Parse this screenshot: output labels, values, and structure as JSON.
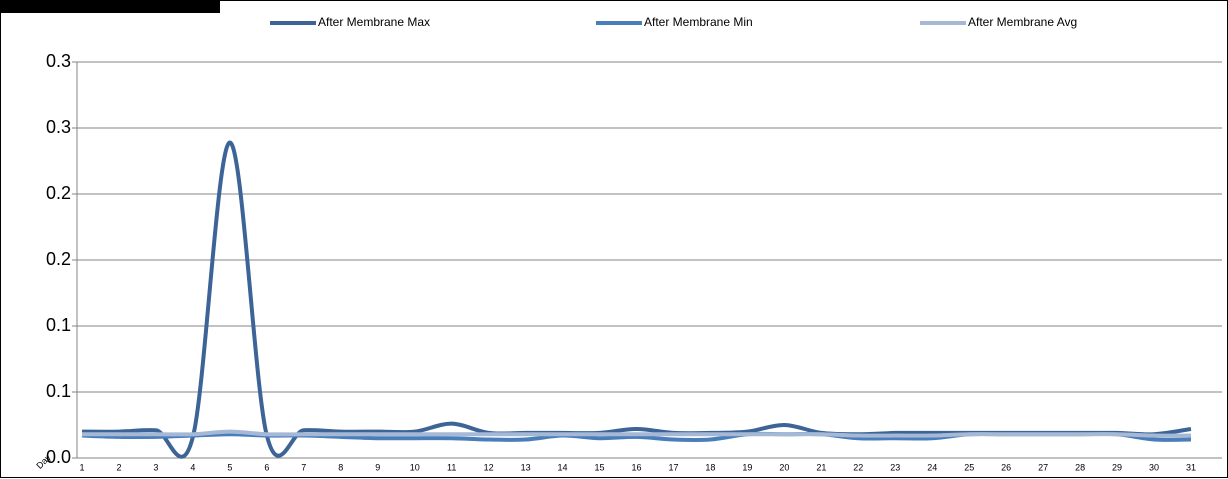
{
  "chart_data": {
    "type": "line",
    "xlabel": "Day",
    "categories": [
      "1",
      "2",
      "3",
      "4",
      "5",
      "6",
      "7",
      "8",
      "9",
      "10",
      "11",
      "12",
      "13",
      "14",
      "15",
      "16",
      "17",
      "18",
      "19",
      "20",
      "21",
      "22",
      "23",
      "24",
      "25",
      "26",
      "27",
      "28",
      "29",
      "30",
      "31"
    ],
    "series": [
      {
        "name": "After Membrane Max",
        "color": "#3c6496",
        "values": [
          0.02,
          0.02,
          0.021,
          0.016,
          0.239,
          0.017,
          0.021,
          0.02,
          0.02,
          0.02,
          0.026,
          0.019,
          0.019,
          0.019,
          0.019,
          0.022,
          0.019,
          0.019,
          0.02,
          0.025,
          0.019,
          0.018,
          0.019,
          0.019,
          0.019,
          0.019,
          0.019,
          0.019,
          0.019,
          0.018,
          0.022
        ]
      },
      {
        "name": "After Membrane Min",
        "color": "#4a7ebb",
        "values": [
          0.017,
          0.016,
          0.016,
          0.017,
          0.018,
          0.017,
          0.017,
          0.016,
          0.015,
          0.015,
          0.015,
          0.014,
          0.014,
          0.017,
          0.015,
          0.016,
          0.014,
          0.014,
          0.018,
          0.018,
          0.018,
          0.015,
          0.015,
          0.015,
          0.018,
          0.018,
          0.018,
          0.018,
          0.018,
          0.014,
          0.014
        ]
      },
      {
        "name": "After Membrane Avg",
        "color": "#a5b8d6",
        "values": [
          0.018,
          0.018,
          0.018,
          0.018,
          0.02,
          0.018,
          0.018,
          0.018,
          0.018,
          0.018,
          0.018,
          0.018,
          0.018,
          0.018,
          0.018,
          0.018,
          0.018,
          0.018,
          0.018,
          0.018,
          0.018,
          0.017,
          0.017,
          0.017,
          0.018,
          0.018,
          0.018,
          0.018,
          0.018,
          0.017,
          0.017
        ]
      }
    ],
    "ylim": [
      0,
      0.3
    ],
    "yticks": [
      {
        "value": 0,
        "label": "0.0"
      },
      {
        "value": 0.05,
        "label": "0.1"
      },
      0.1,
      {
        "value": 0.15,
        "label": "0.2"
      },
      0.2,
      {
        "value": 0.25,
        "label": "0.3"
      },
      0.3
    ],
    "grid": true,
    "legend": "top"
  }
}
